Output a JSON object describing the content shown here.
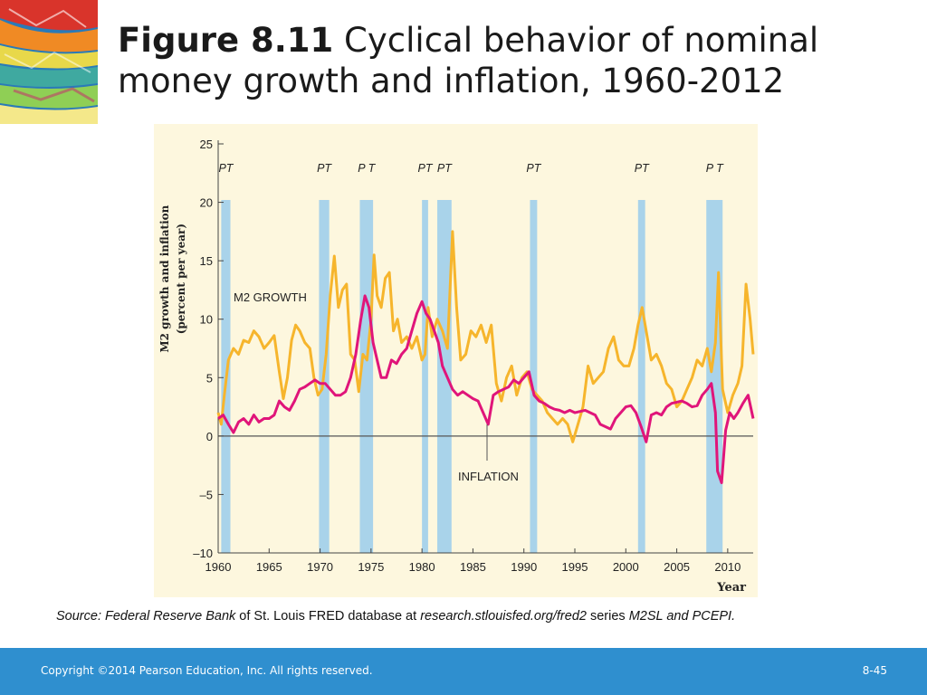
{
  "slide": {
    "title_bold": "Figure 8.11",
    "title_rest": " Cyclical behavior of nominal money growth and inflation, 1960-2012",
    "source_parts": {
      "p1": "Source: Federal Reserve Bank",
      "p2": " of St. Louis FRED database at ",
      "p3": "research.stlouisfed.org/fred2",
      "p4": " series ",
      "p5": "M2SL and PCEPI."
    },
    "footer_copyright": "Copyright ©2014 Pearson Education, Inc. All rights reserved.",
    "footer_page": "8-45"
  },
  "colors": {
    "m2": "#f6b52c",
    "inflation": "#e0157a",
    "recession": "#a9d3ea",
    "plot_bg": "#fdf7de",
    "footer": "#2f8fcf"
  },
  "chart_data": {
    "type": "line",
    "ylabel_line1": "M2 growth and inflation",
    "ylabel_line2": "(percent per year)",
    "xlabel": "Year",
    "xlim": [
      1960,
      2012.5
    ],
    "ylim": [
      -10,
      25
    ],
    "yticks": [
      -10,
      -5,
      0,
      5,
      10,
      15,
      20,
      25
    ],
    "ytick_labels": [
      "–10",
      "–5",
      "0",
      "5",
      "10",
      "15",
      "20",
      "25"
    ],
    "xticks": [
      1960,
      1965,
      1970,
      1975,
      1980,
      1985,
      1990,
      1995,
      2000,
      2005,
      2010
    ],
    "xtick_labels": [
      "1960",
      "1965",
      "1970",
      "1975",
      "1980",
      "1985",
      "1990",
      "1995",
      "2000",
      "2005",
      "2010"
    ],
    "recessions": [
      {
        "start": 1960.3,
        "end": 1961.2,
        "label": "PT"
      },
      {
        "start": 1969.9,
        "end": 1970.9,
        "label": "PT"
      },
      {
        "start": 1973.9,
        "end": 1975.2,
        "label": "P T"
      },
      {
        "start": 1980.0,
        "end": 1980.6,
        "label": "PT"
      },
      {
        "start": 1981.5,
        "end": 1982.9,
        "label": "PT"
      },
      {
        "start": 1990.6,
        "end": 1991.3,
        "label": "PT"
      },
      {
        "start": 2001.2,
        "end": 2001.9,
        "label": "PT"
      },
      {
        "start": 2007.9,
        "end": 2009.5,
        "label": "P T"
      }
    ],
    "series": [
      {
        "name": "M2 GROWTH",
        "x": [
          1960.0,
          1960.3,
          1960.6,
          1961.0,
          1961.5,
          1962.0,
          1962.5,
          1963.0,
          1963.5,
          1964.0,
          1964.5,
          1965.0,
          1965.5,
          1966.0,
          1966.4,
          1966.8,
          1967.2,
          1967.6,
          1968.0,
          1968.5,
          1969.0,
          1969.4,
          1969.8,
          1970.2,
          1970.6,
          1971.0,
          1971.4,
          1971.8,
          1972.2,
          1972.6,
          1973.0,
          1973.4,
          1973.8,
          1974.2,
          1974.6,
          1975.0,
          1975.3,
          1975.6,
          1976.0,
          1976.4,
          1976.8,
          1977.2,
          1977.6,
          1978.0,
          1978.5,
          1979.0,
          1979.5,
          1980.0,
          1980.3,
          1980.6,
          1981.0,
          1981.5,
          1982.0,
          1982.5,
          1983.0,
          1983.4,
          1983.8,
          1984.3,
          1984.8,
          1985.3,
          1985.8,
          1986.3,
          1986.8,
          1987.3,
          1987.8,
          1988.3,
          1988.8,
          1989.3,
          1989.8,
          1990.3,
          1990.8,
          1991.3,
          1991.8,
          1992.3,
          1992.8,
          1993.3,
          1993.8,
          1994.3,
          1994.8,
          1995.3,
          1995.8,
          1996.3,
          1996.8,
          1997.3,
          1997.8,
          1998.3,
          1998.8,
          1999.3,
          1999.8,
          2000.3,
          2000.8,
          2001.2,
          2001.6,
          2002.0,
          2002.5,
          2003.0,
          2003.5,
          2004.0,
          2004.5,
          2005.0,
          2005.5,
          2006.0,
          2006.5,
          2007.0,
          2007.5,
          2008.0,
          2008.4,
          2008.8,
          2009.1,
          2009.5,
          2010.0,
          2010.5,
          2011.0,
          2011.4,
          2011.8,
          2012.2,
          2012.5
        ],
        "y": [
          2.0,
          1.0,
          3.5,
          6.5,
          7.5,
          7.0,
          8.2,
          8.0,
          9.0,
          8.5,
          7.5,
          8.0,
          8.6,
          5.5,
          3.2,
          5.0,
          8.2,
          9.5,
          9.0,
          8.0,
          7.5,
          5.0,
          3.5,
          4.0,
          7.0,
          12.0,
          15.4,
          11.0,
          12.5,
          13.0,
          7.0,
          6.5,
          3.8,
          7.0,
          6.5,
          10.0,
          15.5,
          12.0,
          11.0,
          13.5,
          14.0,
          9.0,
          10.0,
          8.0,
          8.5,
          7.5,
          8.5,
          6.5,
          7.0,
          11.0,
          8.5,
          10.0,
          9.0,
          7.5,
          17.5,
          11.0,
          6.5,
          7.0,
          9.0,
          8.5,
          9.5,
          8.0,
          9.5,
          4.5,
          3.0,
          5.0,
          6.0,
          3.5,
          5.0,
          5.5,
          4.0,
          3.5,
          3.0,
          2.0,
          1.5,
          1.0,
          1.5,
          1.0,
          -0.5,
          1.0,
          2.5,
          6.0,
          4.5,
          5.0,
          5.5,
          7.5,
          8.5,
          6.5,
          6.0,
          6.0,
          7.5,
          9.5,
          11.0,
          9.0,
          6.5,
          7.0,
          6.0,
          4.5,
          4.0,
          2.5,
          3.0,
          4.0,
          5.0,
          6.5,
          6.0,
          7.5,
          5.5,
          8.0,
          14.0,
          4.0,
          2.0,
          3.5,
          4.5,
          6.0,
          13.0,
          10.0,
          7.0
        ]
      },
      {
        "name": "INFLATION",
        "x": [
          1960.0,
          1960.5,
          1961.0,
          1961.5,
          1962.0,
          1962.5,
          1963.0,
          1963.5,
          1964.0,
          1964.5,
          1965.0,
          1965.5,
          1966.0,
          1966.5,
          1967.0,
          1967.5,
          1968.0,
          1968.5,
          1969.0,
          1969.5,
          1970.0,
          1970.5,
          1971.0,
          1971.5,
          1972.0,
          1972.5,
          1973.0,
          1973.5,
          1974.0,
          1974.4,
          1974.8,
          1975.2,
          1975.6,
          1976.0,
          1976.5,
          1977.0,
          1977.5,
          1978.0,
          1978.5,
          1979.0,
          1979.5,
          1980.0,
          1980.4,
          1980.8,
          1981.2,
          1981.6,
          1982.0,
          1982.5,
          1983.0,
          1983.5,
          1984.0,
          1984.5,
          1985.0,
          1985.5,
          1986.0,
          1986.5,
          1987.0,
          1987.5,
          1988.0,
          1988.5,
          1989.0,
          1989.5,
          1990.0,
          1990.5,
          1991.0,
          1991.5,
          1992.0,
          1992.5,
          1993.0,
          1993.5,
          1994.0,
          1994.5,
          1995.0,
          1995.5,
          1996.0,
          1996.5,
          1997.0,
          1997.5,
          1998.0,
          1998.5,
          1999.0,
          1999.5,
          2000.0,
          2000.5,
          2001.0,
          2001.5,
          2002.0,
          2002.5,
          2003.0,
          2003.5,
          2004.0,
          2004.5,
          2005.0,
          2005.5,
          2006.0,
          2006.5,
          2007.0,
          2007.5,
          2008.0,
          2008.4,
          2008.8,
          2009.0,
          2009.4,
          2009.8,
          2010.2,
          2010.6,
          2011.0,
          2011.5,
          2012.0,
          2012.5
        ],
        "y": [
          1.5,
          1.8,
          1.0,
          0.3,
          1.2,
          1.5,
          1.0,
          1.8,
          1.2,
          1.5,
          1.5,
          1.8,
          3.0,
          2.5,
          2.2,
          3.0,
          4.0,
          4.2,
          4.5,
          4.8,
          4.5,
          4.5,
          4.0,
          3.5,
          3.5,
          3.8,
          5.0,
          7.0,
          10.0,
          12.0,
          11.0,
          8.0,
          6.5,
          5.0,
          5.0,
          6.5,
          6.2,
          7.0,
          7.5,
          9.0,
          10.5,
          11.5,
          10.5,
          10.0,
          9.0,
          8.0,
          6.0,
          5.0,
          4.0,
          3.5,
          3.8,
          3.5,
          3.2,
          3.0,
          2.0,
          1.0,
          3.5,
          3.8,
          4.0,
          4.2,
          4.8,
          4.5,
          5.0,
          5.5,
          3.5,
          3.0,
          2.8,
          2.5,
          2.3,
          2.2,
          2.0,
          2.2,
          2.0,
          2.1,
          2.2,
          2.0,
          1.8,
          1.0,
          0.8,
          0.6,
          1.5,
          2.0,
          2.5,
          2.6,
          2.0,
          0.8,
          -0.5,
          1.8,
          2.0,
          1.8,
          2.5,
          2.8,
          2.9,
          3.0,
          2.8,
          2.5,
          2.6,
          3.5,
          4.0,
          4.5,
          2.0,
          -3.0,
          -4.0,
          0.5,
          2.0,
          1.5,
          2.0,
          2.8,
          3.5,
          1.5
        ]
      }
    ],
    "annotations": [
      "M2 GROWTH",
      "INFLATION"
    ]
  }
}
